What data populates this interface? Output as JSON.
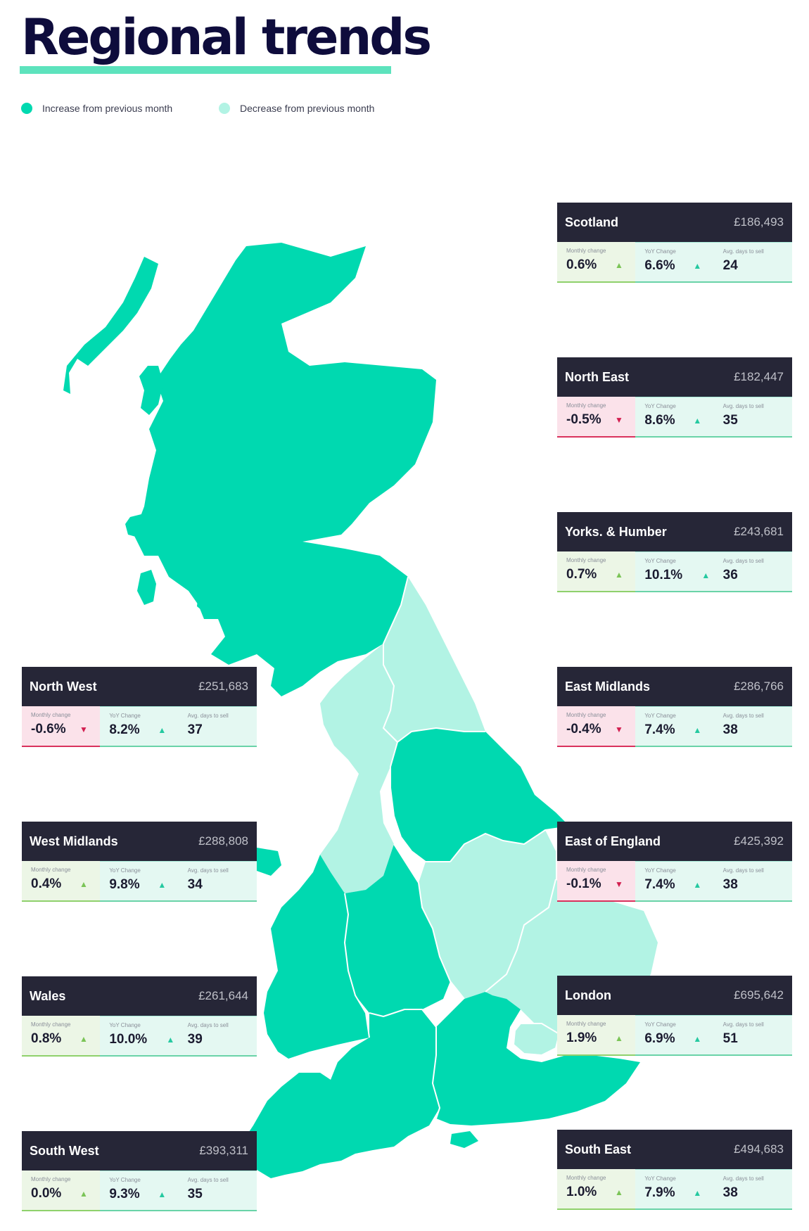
{
  "title": "Regional trends",
  "legend": {
    "increase": {
      "label": "Increase from previous month",
      "color": "#00d9b0"
    },
    "decrease": {
      "label": "Decrease from previous month",
      "color": "#b2f3e4"
    }
  },
  "labels": {
    "monthly": "Monthly change",
    "yoy": "YoY Change",
    "days": "Avg. days to sell"
  },
  "regions": [
    {
      "name": "Scotland",
      "price": "£186,493",
      "monthly": "0.6%",
      "monthly_dir": "up",
      "yoy": "6.6%",
      "days": "24"
    },
    {
      "name": "North East",
      "price": "£182,447",
      "monthly": "-0.5%",
      "monthly_dir": "down",
      "yoy": "8.6%",
      "days": "35"
    },
    {
      "name": "Yorks. & Humber",
      "price": "£243,681",
      "monthly": "0.7%",
      "monthly_dir": "up",
      "yoy": "10.1%",
      "days": "36"
    },
    {
      "name": "North West",
      "price": "£251,683",
      "monthly": "-0.6%",
      "monthly_dir": "down",
      "yoy": "8.2%",
      "days": "37"
    },
    {
      "name": "East Midlands",
      "price": "£286,766",
      "monthly": "-0.4%",
      "monthly_dir": "down",
      "yoy": "7.4%",
      "days": "38"
    },
    {
      "name": "West Midlands",
      "price": "£288,808",
      "monthly": "0.4%",
      "monthly_dir": "up",
      "yoy": "9.8%",
      "days": "34"
    },
    {
      "name": "East of England",
      "price": "£425,392",
      "monthly": "-0.1%",
      "monthly_dir": "down",
      "yoy": "7.4%",
      "days": "38"
    },
    {
      "name": "Wales",
      "price": "£261,644",
      "monthly": "0.8%",
      "monthly_dir": "up",
      "yoy": "10.0%",
      "days": "39"
    },
    {
      "name": "London",
      "price": "£695,642",
      "monthly": "1.9%",
      "monthly_dir": "up",
      "yoy": "6.9%",
      "days": "51"
    },
    {
      "name": "South West",
      "price": "£393,311",
      "monthly": "0.0%",
      "monthly_dir": "up",
      "yoy": "9.3%",
      "days": "35"
    },
    {
      "name": "South East",
      "price": "£494,683",
      "monthly": "1.0%",
      "monthly_dir": "up",
      "yoy": "7.9%",
      "days": "38"
    }
  ]
}
